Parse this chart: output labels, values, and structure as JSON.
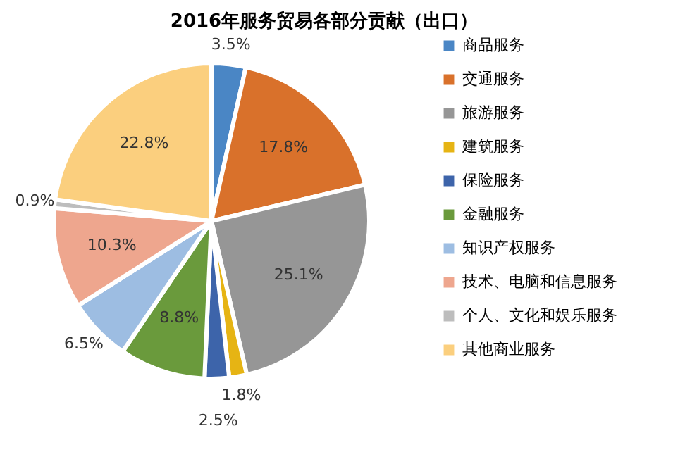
{
  "chart_data": {
    "type": "pie",
    "title": "2016年服务贸易各部分贡献（出口）",
    "categories": [
      "商品服务",
      "交通服务",
      "旅游服务",
      "建筑服务",
      "保险服务",
      "金融服务",
      "知识产权服务",
      "技术、电脑和信息服务",
      "个人、文化和娱乐服务",
      "其他商业服务"
    ],
    "values": [
      3.5,
      17.8,
      25.1,
      1.8,
      2.5,
      8.8,
      6.5,
      10.3,
      0.9,
      22.8
    ],
    "value_labels": [
      "3.5%",
      "17.8%",
      "25.1%",
      "1.8%",
      "2.5%",
      "8.8%",
      "6.5%",
      "10.3%",
      "0.9%",
      "22.8%"
    ],
    "colors": [
      "#4a86c5",
      "#d9712b",
      "#969696",
      "#e6b414",
      "#3d64aa",
      "#6a9a3c",
      "#9dbde2",
      "#eea68e",
      "#bdbdbd",
      "#fbcf7e"
    ],
    "legend": "right"
  }
}
